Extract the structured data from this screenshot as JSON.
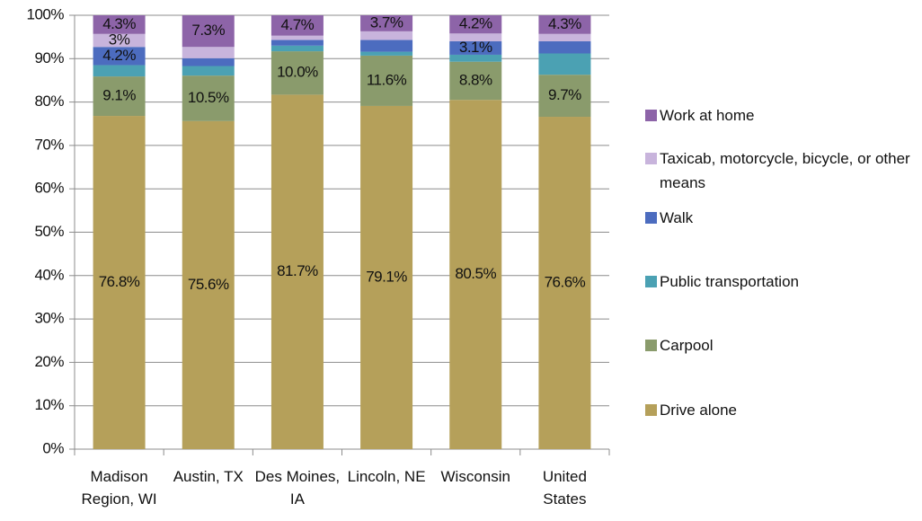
{
  "chart_data": {
    "type": "stacked_bar",
    "categories": [
      "Madison Region, WI",
      "Austin, TX",
      "Des Moines, IA",
      "Lincoln, NE",
      "Wisconsin",
      "United States"
    ],
    "series": [
      {
        "name": "Drive alone",
        "color": "#b5a05a",
        "values": [
          76.8,
          75.6,
          81.7,
          79.1,
          80.5,
          76.6
        ],
        "value_labels": [
          "76.8%",
          "75.6%",
          "81.7%",
          "79.1%",
          "80.5%",
          "76.6%"
        ]
      },
      {
        "name": "Carpool",
        "color": "#8a9b6c",
        "values": [
          9.1,
          10.5,
          10.0,
          11.6,
          8.8,
          9.7
        ],
        "value_labels": [
          "9.1%",
          "10.5%",
          "10.0%",
          "11.6%",
          "8.8%",
          "9.7%"
        ]
      },
      {
        "name": "Public transportation",
        "color": "#4ba1b3",
        "values": [
          2.6,
          2.2,
          1.3,
          0.9,
          1.6,
          4.9
        ],
        "value_labels": [
          null,
          null,
          null,
          null,
          null,
          null
        ]
      },
      {
        "name": "Walk",
        "color": "#4c6cbf",
        "values": [
          4.2,
          1.8,
          1.3,
          2.7,
          3.1,
          2.8
        ],
        "value_labels": [
          "4.2%",
          null,
          null,
          null,
          "3.1%",
          null
        ]
      },
      {
        "name": "Taxicab, motorcycle, bicycle, or other means",
        "color": "#c8b4dc",
        "values": [
          3,
          2.6,
          1.0,
          2.0,
          1.8,
          1.7
        ],
        "value_labels": [
          "3%",
          null,
          null,
          null,
          null,
          null
        ]
      },
      {
        "name": "Work at home",
        "color": "#8d64a8",
        "values": [
          4.3,
          7.3,
          4.7,
          3.7,
          4.2,
          4.3
        ],
        "value_labels": [
          "4.3%",
          "7.3%",
          "4.7%",
          "3.7%",
          "4.2%",
          "4.3%"
        ]
      }
    ],
    "ylim": [
      0,
      100
    ],
    "yticks": [
      {
        "value": 0,
        "label": "0%"
      },
      {
        "value": 10,
        "label": "10%"
      },
      {
        "value": 20,
        "label": "20%"
      },
      {
        "value": 30,
        "label": "30%"
      },
      {
        "value": 40,
        "label": "40%"
      },
      {
        "value": 50,
        "label": "50%"
      },
      {
        "value": 60,
        "label": "60%"
      },
      {
        "value": 70,
        "label": "70%"
      },
      {
        "value": 80,
        "label": "80%"
      },
      {
        "value": 90,
        "label": "90%"
      },
      {
        "value": 100,
        "label": "100%"
      }
    ],
    "grid": true
  }
}
